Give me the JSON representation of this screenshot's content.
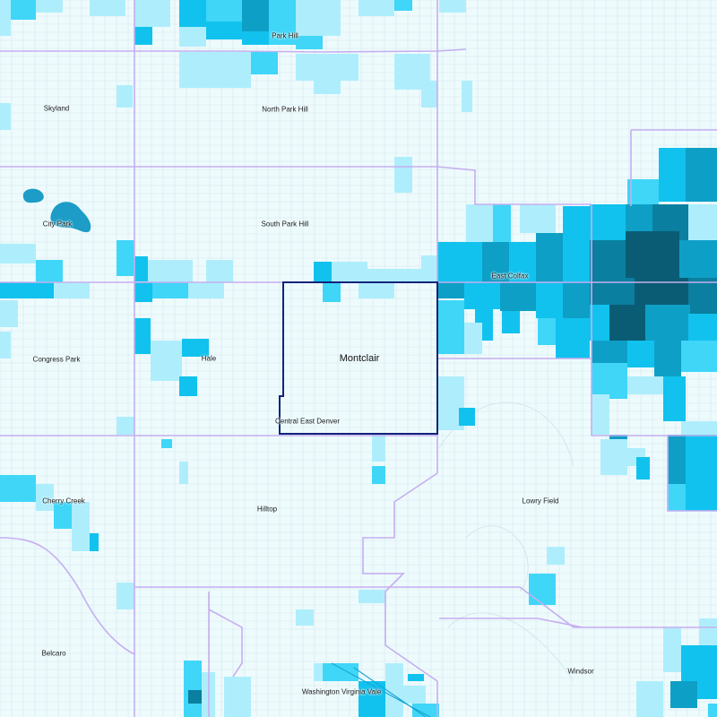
{
  "map": {
    "colors": {
      "background": "#eefbfd",
      "street": "#d3e6ee",
      "boundary": "#c6aef0",
      "selected_outline": "#13237a",
      "water": "#1c9cc6",
      "ramp": [
        "#aeeefc",
        "#3fd6f8",
        "#11c2ee",
        "#0e9fc6",
        "#0b7f9f",
        "#0a5c74"
      ]
    },
    "neighborhoods": [
      {
        "id": "park-hill",
        "name": "Park Hill"
      },
      {
        "id": "skyland",
        "name": "Skyland"
      },
      {
        "id": "north-park-hill",
        "name": "North Park Hill"
      },
      {
        "id": "city-park",
        "name": "City Park"
      },
      {
        "id": "south-park-hill",
        "name": "South Park Hill"
      },
      {
        "id": "east-colfax",
        "name": "East Colfax"
      },
      {
        "id": "congress-park",
        "name": "Congress Park"
      },
      {
        "id": "hale",
        "name": "Hale"
      },
      {
        "id": "montclair",
        "name": "Montclair",
        "selected": true
      },
      {
        "id": "central-east-denver",
        "name": "Central East Denver"
      },
      {
        "id": "cherry-creek",
        "name": "Cherry Creek"
      },
      {
        "id": "hilltop",
        "name": "Hilltop"
      },
      {
        "id": "lowry-field",
        "name": "Lowry Field"
      },
      {
        "id": "belcaro",
        "name": "Belcaro"
      },
      {
        "id": "windsor",
        "name": "Windsor"
      },
      {
        "id": "washington-virginia-vale",
        "name": "Washington Virginia Vale"
      }
    ]
  }
}
